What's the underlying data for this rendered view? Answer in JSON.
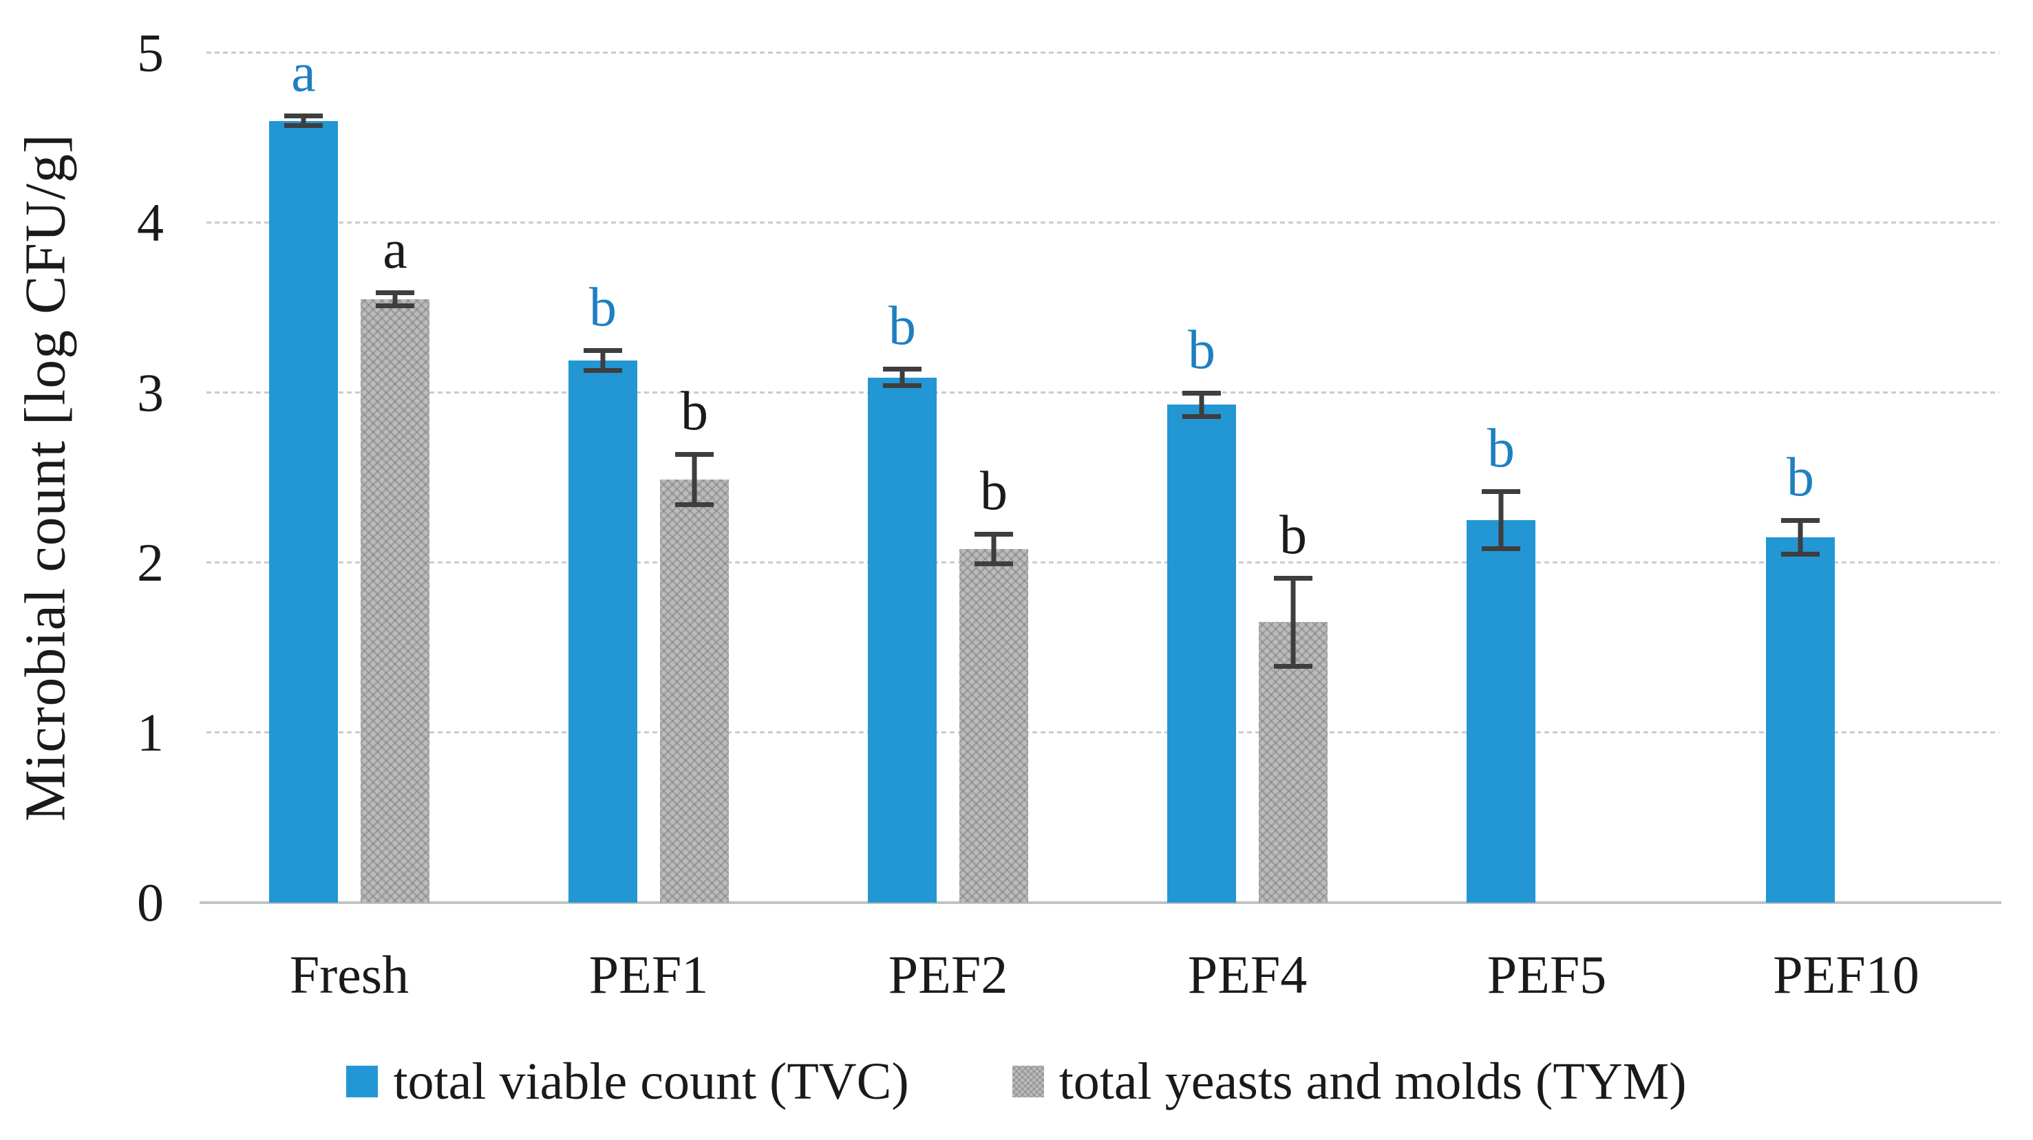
{
  "chart_data": {
    "type": "bar",
    "title": "",
    "xlabel": "",
    "ylabel": "Microbial count [log CFU/g]",
    "ylim": [
      0,
      5
    ],
    "yticks": [
      0,
      1,
      2,
      3,
      4,
      5
    ],
    "grid": "horizontal-dashed",
    "legend_position": "bottom",
    "categories": [
      "Fresh",
      "PEF1",
      "PEF2",
      "PEF4",
      "PEF5",
      "PEF10"
    ],
    "series": [
      {
        "name": "total viable count (TVC)",
        "color": "#2396d4",
        "letter_color": "#1e7fc1",
        "values": [
          4.6,
          3.19,
          3.09,
          2.93,
          2.25,
          2.15
        ],
        "errors": [
          0.03,
          0.06,
          0.05,
          0.07,
          0.17,
          0.1
        ],
        "sig_letters": [
          "a",
          "b",
          "b",
          "b",
          "b",
          "b"
        ]
      },
      {
        "name": "total yeasts and molds (TYM)",
        "color": "#bcbcbc",
        "pattern": "crosshatch",
        "letter_color": "#1a1a1a",
        "values": [
          3.55,
          2.49,
          2.08,
          1.65,
          null,
          null
        ],
        "errors": [
          0.04,
          0.15,
          0.09,
          0.26,
          null,
          null
        ],
        "sig_letters": [
          "a",
          "b",
          "b",
          "b",
          null,
          null
        ]
      }
    ],
    "error_bar_color": "#3e3e3e",
    "gridline_color": "#cbcbcb",
    "axis_line_color": "#c2c2c2",
    "text_color": "#1a1a1a"
  }
}
